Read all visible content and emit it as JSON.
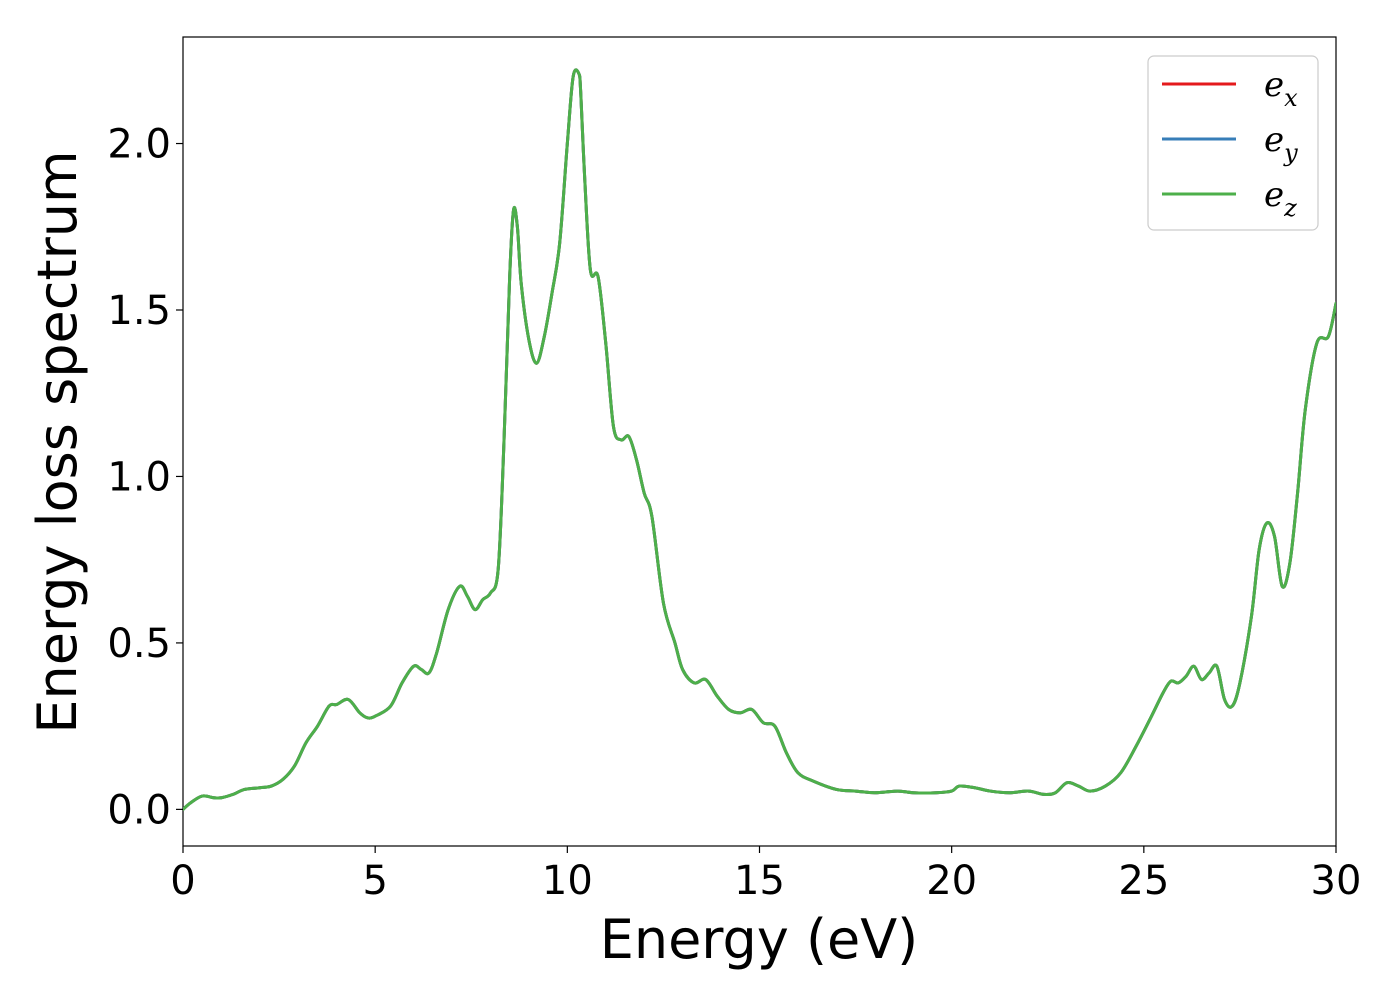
{
  "chart_data": {
    "type": "line",
    "xlabel": "Energy (eV)",
    "ylabel": "Energy loss spectrum",
    "xlim": [
      0,
      30
    ],
    "ylim": [
      -0.11,
      2.32
    ],
    "xticks": [
      0,
      5,
      10,
      15,
      20,
      25,
      30
    ],
    "xtick_labels": [
      "0",
      "5",
      "10",
      "15",
      "20",
      "25",
      "30"
    ],
    "yticks": [
      0.0,
      0.5,
      1.0,
      1.5,
      2.0
    ],
    "ytick_labels": [
      "0.0",
      "0.5",
      "1.0",
      "1.5",
      "2.0"
    ],
    "grid": false,
    "legend_position": "top-right",
    "x": [
      0,
      0.2,
      0.5,
      0.8,
      1.0,
      1.3,
      1.6,
      2.0,
      2.3,
      2.6,
      2.9,
      3.2,
      3.5,
      3.8,
      4.0,
      4.3,
      4.6,
      4.8,
      5.0,
      5.4,
      5.7,
      6.0,
      6.2,
      6.4,
      6.6,
      6.9,
      7.2,
      7.4,
      7.6,
      7.8,
      8.0,
      8.2,
      8.35,
      8.5,
      8.6,
      8.7,
      8.8,
      9.0,
      9.2,
      9.4,
      9.6,
      9.8,
      10.0,
      10.15,
      10.3,
      10.35,
      10.45,
      10.6,
      10.8,
      11.0,
      11.2,
      11.4,
      11.6,
      11.8,
      12.0,
      12.2,
      12.5,
      12.8,
      13.0,
      13.3,
      13.6,
      13.9,
      14.2,
      14.5,
      14.8,
      15.1,
      15.4,
      15.7,
      16.0,
      16.4,
      17.0,
      17.5,
      18.0,
      18.6,
      19.0,
      19.6,
      20.0,
      20.2,
      20.6,
      21.0,
      21.5,
      22.0,
      22.4,
      22.7,
      23.0,
      23.3,
      23.6,
      24.0,
      24.4,
      24.8,
      25.2,
      25.5,
      25.7,
      25.9,
      26.1,
      26.3,
      26.5,
      26.7,
      26.9,
      27.1,
      27.3,
      27.5,
      27.8,
      28.0,
      28.2,
      28.4,
      28.6,
      28.8,
      29.0,
      29.2,
      29.5,
      29.8,
      30.0
    ],
    "series": [
      {
        "name": "e_x",
        "color": "#e41a1c",
        "values": [
          0,
          0.02,
          0.04,
          0.035,
          0.035,
          0.045,
          0.06,
          0.065,
          0.07,
          0.09,
          0.13,
          0.2,
          0.25,
          0.31,
          0.315,
          0.33,
          0.29,
          0.275,
          0.28,
          0.31,
          0.38,
          0.43,
          0.42,
          0.41,
          0.47,
          0.6,
          0.67,
          0.64,
          0.6,
          0.63,
          0.65,
          0.72,
          1.1,
          1.6,
          1.8,
          1.75,
          1.58,
          1.41,
          1.34,
          1.42,
          1.55,
          1.7,
          2.0,
          2.2,
          2.21,
          2.15,
          1.9,
          1.62,
          1.6,
          1.4,
          1.15,
          1.11,
          1.12,
          1.05,
          0.95,
          0.88,
          0.62,
          0.5,
          0.42,
          0.38,
          0.39,
          0.34,
          0.3,
          0.29,
          0.3,
          0.26,
          0.25,
          0.17,
          0.11,
          0.085,
          0.06,
          0.055,
          0.05,
          0.055,
          0.05,
          0.05,
          0.055,
          0.07,
          0.065,
          0.055,
          0.05,
          0.055,
          0.045,
          0.05,
          0.08,
          0.07,
          0.055,
          0.07,
          0.11,
          0.19,
          0.28,
          0.35,
          0.385,
          0.38,
          0.4,
          0.43,
          0.39,
          0.41,
          0.43,
          0.33,
          0.31,
          0.38,
          0.58,
          0.78,
          0.86,
          0.82,
          0.67,
          0.74,
          0.95,
          1.2,
          1.4,
          1.42,
          1.52
        ]
      },
      {
        "name": "e_y",
        "color": "#377eb8",
        "values": [
          0,
          0.02,
          0.04,
          0.035,
          0.035,
          0.045,
          0.06,
          0.065,
          0.07,
          0.09,
          0.13,
          0.2,
          0.25,
          0.31,
          0.315,
          0.33,
          0.29,
          0.275,
          0.28,
          0.31,
          0.38,
          0.43,
          0.42,
          0.41,
          0.47,
          0.6,
          0.67,
          0.64,
          0.6,
          0.63,
          0.65,
          0.72,
          1.1,
          1.6,
          1.8,
          1.75,
          1.58,
          1.41,
          1.34,
          1.42,
          1.55,
          1.7,
          2.0,
          2.2,
          2.21,
          2.15,
          1.9,
          1.62,
          1.6,
          1.4,
          1.15,
          1.11,
          1.12,
          1.05,
          0.95,
          0.88,
          0.62,
          0.5,
          0.42,
          0.38,
          0.39,
          0.34,
          0.3,
          0.29,
          0.3,
          0.26,
          0.25,
          0.17,
          0.11,
          0.085,
          0.06,
          0.055,
          0.05,
          0.055,
          0.05,
          0.05,
          0.055,
          0.07,
          0.065,
          0.055,
          0.05,
          0.055,
          0.045,
          0.05,
          0.08,
          0.07,
          0.055,
          0.07,
          0.11,
          0.19,
          0.28,
          0.35,
          0.385,
          0.38,
          0.4,
          0.43,
          0.39,
          0.41,
          0.43,
          0.33,
          0.31,
          0.38,
          0.58,
          0.78,
          0.86,
          0.82,
          0.67,
          0.74,
          0.95,
          1.2,
          1.4,
          1.42,
          1.52
        ]
      },
      {
        "name": "e_z",
        "color": "#4daf4a",
        "values": [
          0,
          0.02,
          0.04,
          0.035,
          0.035,
          0.045,
          0.06,
          0.065,
          0.07,
          0.09,
          0.13,
          0.2,
          0.25,
          0.31,
          0.315,
          0.33,
          0.29,
          0.275,
          0.28,
          0.31,
          0.38,
          0.43,
          0.42,
          0.41,
          0.47,
          0.6,
          0.67,
          0.64,
          0.6,
          0.63,
          0.65,
          0.72,
          1.1,
          1.6,
          1.8,
          1.75,
          1.58,
          1.41,
          1.34,
          1.42,
          1.55,
          1.7,
          2.0,
          2.2,
          2.21,
          2.15,
          1.9,
          1.62,
          1.6,
          1.4,
          1.15,
          1.11,
          1.12,
          1.05,
          0.95,
          0.88,
          0.62,
          0.5,
          0.42,
          0.38,
          0.39,
          0.34,
          0.3,
          0.29,
          0.3,
          0.26,
          0.25,
          0.17,
          0.11,
          0.085,
          0.06,
          0.055,
          0.05,
          0.055,
          0.05,
          0.05,
          0.055,
          0.07,
          0.065,
          0.055,
          0.05,
          0.055,
          0.045,
          0.05,
          0.08,
          0.07,
          0.055,
          0.07,
          0.11,
          0.19,
          0.28,
          0.35,
          0.385,
          0.38,
          0.4,
          0.43,
          0.39,
          0.41,
          0.43,
          0.33,
          0.31,
          0.38,
          0.58,
          0.78,
          0.86,
          0.82,
          0.67,
          0.74,
          0.95,
          1.2,
          1.4,
          1.42,
          1.52
        ]
      }
    ],
    "legend": [
      {
        "base": "e",
        "sub": "x"
      },
      {
        "base": "e",
        "sub": "y"
      },
      {
        "base": "e",
        "sub": "z"
      }
    ]
  }
}
